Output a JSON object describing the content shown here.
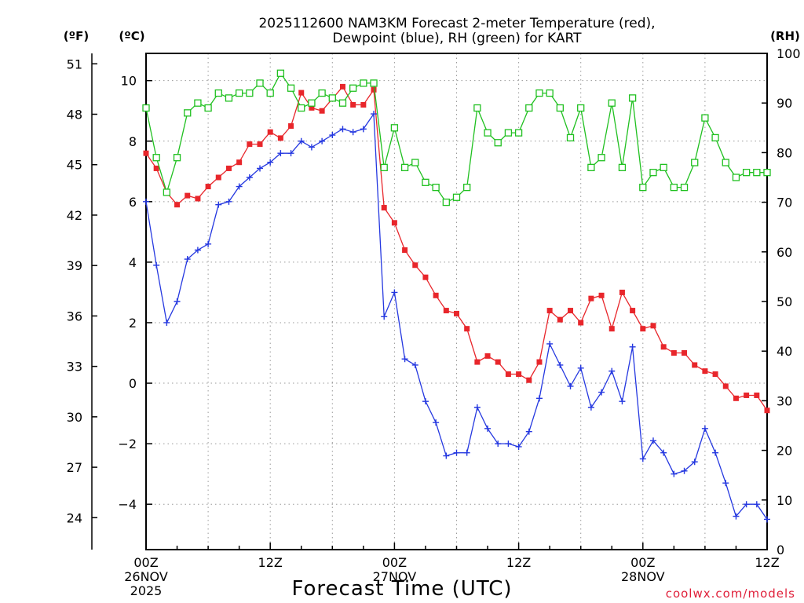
{
  "chart_data": {
    "type": "line",
    "title_lines": [
      "2025112600 NAM3KM Forecast 2-meter Temperature (red),",
      "Dewpoint (blue), RH (green) for KART"
    ],
    "units": {
      "fahrenheit": "(ºF)",
      "celsius": "(ºC)",
      "rh": "(RH)"
    },
    "xlabel": "Forecast Time (UTC)",
    "credit": "coolwx.com/models",
    "x_range_hours": [
      0,
      60
    ],
    "y_celsius_range": [
      -5.5,
      10.9
    ],
    "y_rh_range": [
      0,
      100
    ],
    "celsius_ticks": [
      "10",
      "8",
      "6",
      "4",
      "2",
      "0",
      "−2",
      "−4"
    ],
    "celsius_tick_values": [
      10,
      8,
      6,
      4,
      2,
      0,
      -2,
      -4
    ],
    "fahrenheit_ticks": [
      "51",
      "48",
      "45",
      "42",
      "39",
      "36",
      "33",
      "30",
      "27",
      "24"
    ],
    "fahrenheit_tick_values": [
      51,
      48,
      45,
      42,
      39,
      36,
      33,
      30,
      27,
      24
    ],
    "rh_ticks": [
      "100",
      "90",
      "80",
      "70",
      "60",
      "50",
      "40",
      "30",
      "20",
      "10",
      "0"
    ],
    "rh_tick_values": [
      100,
      90,
      80,
      70,
      60,
      50,
      40,
      30,
      20,
      10,
      0
    ],
    "x_ticks": [
      {
        "hour": 0,
        "lines": [
          "00Z",
          "26NOV",
          "2025"
        ]
      },
      {
        "hour": 12,
        "lines": [
          "12Z"
        ]
      },
      {
        "hour": 24,
        "lines": [
          "00Z",
          "27NOV"
        ]
      },
      {
        "hour": 36,
        "lines": [
          "12Z"
        ]
      },
      {
        "hour": 48,
        "lines": [
          "00Z",
          "28NOV"
        ]
      },
      {
        "hour": 60,
        "lines": [
          "12Z"
        ]
      }
    ],
    "series": [
      {
        "name": "2-meter Temperature",
        "unit": "C",
        "color": "#e8262b",
        "marker": "filled-square",
        "values": [
          7.6,
          7.1,
          6.3,
          5.9,
          6.2,
          6.1,
          6.5,
          6.8,
          7.1,
          7.3,
          7.9,
          7.9,
          8.3,
          8.1,
          8.5,
          9.6,
          9.1,
          9.0,
          9.4,
          9.8,
          9.2,
          9.2,
          9.7,
          5.8,
          5.3,
          4.4,
          3.9,
          3.5,
          2.9,
          2.4,
          2.3,
          1.8,
          0.7,
          0.9,
          0.7,
          0.3,
          0.3,
          0.1,
          0.7,
          2.4,
          2.1,
          2.4,
          2.0,
          2.8,
          2.9,
          1.8,
          3.0,
          2.4,
          1.8,
          1.9,
          1.2,
          1.0,
          1.0,
          0.6,
          0.4,
          0.3,
          -0.1,
          -0.5,
          -0.4,
          -0.4,
          -0.9
        ]
      },
      {
        "name": "Dewpoint",
        "unit": "C",
        "color": "#2538e0",
        "marker": "plus",
        "values": [
          6.0,
          3.9,
          2.0,
          2.7,
          4.1,
          4.4,
          4.6,
          5.9,
          6.0,
          6.5,
          6.8,
          7.1,
          7.3,
          7.6,
          7.6,
          8.0,
          7.8,
          8.0,
          8.2,
          8.4,
          8.3,
          8.4,
          8.9,
          2.2,
          3.0,
          0.8,
          0.6,
          -0.6,
          -1.3,
          -2.4,
          -2.3,
          -2.3,
          -0.8,
          -1.5,
          -2.0,
          -2.0,
          -2.1,
          -1.6,
          -0.5,
          1.3,
          0.6,
          -0.1,
          0.5,
          -0.8,
          -0.3,
          0.4,
          -0.6,
          1.2,
          -2.5,
          -1.9,
          -2.3,
          -3.0,
          -2.9,
          -2.6,
          -1.5,
          -2.3,
          -3.3,
          -4.4,
          -4.0,
          -4.0,
          -4.5
        ]
      },
      {
        "name": "RH",
        "unit": "%",
        "color": "#20c020",
        "marker": "open-square",
        "values": [
          89,
          79,
          72,
          79,
          88,
          90,
          89,
          92,
          91,
          92,
          92,
          94,
          92,
          96,
          93,
          89,
          90,
          92,
          91,
          90,
          93,
          94,
          94,
          77,
          85,
          77,
          78,
          74,
          73,
          70,
          71,
          73,
          89,
          84,
          82,
          84,
          84,
          89,
          92,
          92,
          89,
          83,
          89,
          77,
          79,
          90,
          77,
          91,
          73,
          76,
          77,
          73,
          73,
          78,
          87,
          83,
          78,
          75,
          76,
          76,
          76
        ]
      }
    ]
  }
}
